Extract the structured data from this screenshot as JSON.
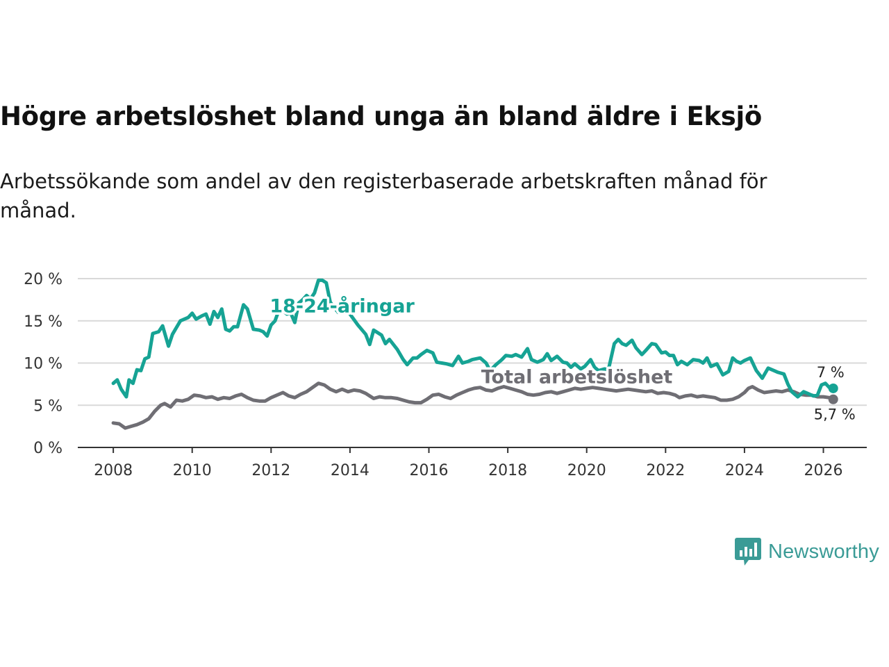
{
  "title": "Högre arbetslöshet bland unga än bland äldre i Eksjö",
  "subtitle": "Arbetssökande som andel av den registerbaserade arbetskraften månad för månad.",
  "brand": {
    "name": "Newsworthy",
    "icon": "newsworthy-logo-icon",
    "color": "#3a9b96"
  },
  "colors": {
    "youth": "#16a394",
    "total": "#6f6e74",
    "grid": "#d9d9d9",
    "axis": "#333333"
  },
  "chart_data": {
    "type": "line",
    "ylim": [
      0,
      20
    ],
    "xlim": [
      2007.1,
      2027.1
    ],
    "y_ticks": [
      {
        "value": 0,
        "label": "0 %"
      },
      {
        "value": 5,
        "label": "5 %"
      },
      {
        "value": 10,
        "label": "10 %"
      },
      {
        "value": 15,
        "label": "15 %"
      },
      {
        "value": 20,
        "label": "20 %"
      }
    ],
    "x_ticks": [
      {
        "value": 2008,
        "label": "2008"
      },
      {
        "value": 2010,
        "label": "2010"
      },
      {
        "value": 2012,
        "label": "2012"
      },
      {
        "value": 2014,
        "label": "2014"
      },
      {
        "value": 2016,
        "label": "2016"
      },
      {
        "value": 2018,
        "label": "2018"
      },
      {
        "value": 2020,
        "label": "2020"
      },
      {
        "value": 2022,
        "label": "2022"
      },
      {
        "value": 2024,
        "label": "2024"
      },
      {
        "value": 2026,
        "label": "2026"
      }
    ],
    "series": [
      {
        "name": "18-24-åringar",
        "color": "#16a394",
        "label_pos": [
          2013.8,
          16.0
        ],
        "end_label": "7 %",
        "points": [
          [
            2008.0,
            7.6
          ],
          [
            2008.1,
            8.0
          ],
          [
            2008.2,
            6.9
          ],
          [
            2008.33,
            6.0
          ],
          [
            2008.4,
            8.0
          ],
          [
            2008.5,
            7.6
          ],
          [
            2008.6,
            9.2
          ],
          [
            2008.7,
            9.1
          ],
          [
            2008.8,
            10.5
          ],
          [
            2008.9,
            10.7
          ],
          [
            2009.0,
            13.5
          ],
          [
            2009.15,
            13.7
          ],
          [
            2009.25,
            14.4
          ],
          [
            2009.4,
            12.0
          ],
          [
            2009.5,
            13.4
          ],
          [
            2009.7,
            15.0
          ],
          [
            2009.9,
            15.4
          ],
          [
            2010.0,
            15.9
          ],
          [
            2010.1,
            15.2
          ],
          [
            2010.25,
            15.6
          ],
          [
            2010.35,
            15.8
          ],
          [
            2010.45,
            14.6
          ],
          [
            2010.55,
            16.1
          ],
          [
            2010.65,
            15.4
          ],
          [
            2010.75,
            16.4
          ],
          [
            2010.85,
            14.0
          ],
          [
            2010.95,
            13.8
          ],
          [
            2011.05,
            14.3
          ],
          [
            2011.15,
            14.3
          ],
          [
            2011.3,
            16.9
          ],
          [
            2011.4,
            16.4
          ],
          [
            2011.55,
            14.0
          ],
          [
            2011.7,
            13.9
          ],
          [
            2011.8,
            13.7
          ],
          [
            2011.9,
            13.2
          ],
          [
            2012.0,
            14.5
          ],
          [
            2012.1,
            15.0
          ],
          [
            2012.2,
            16.3
          ],
          [
            2012.3,
            16.2
          ],
          [
            2012.4,
            15.8
          ],
          [
            2012.5,
            15.9
          ],
          [
            2012.6,
            14.8
          ],
          [
            2012.7,
            17.1
          ],
          [
            2012.8,
            17.5
          ],
          [
            2012.9,
            18.0
          ],
          [
            2013.0,
            17.6
          ],
          [
            2013.1,
            18.3
          ],
          [
            2013.2,
            19.8
          ],
          [
            2013.3,
            19.8
          ],
          [
            2013.4,
            19.5
          ],
          [
            2013.5,
            17.2
          ],
          [
            2013.7,
            16.0
          ],
          [
            2013.9,
            16.2
          ],
          [
            2014.0,
            15.8
          ],
          [
            2014.2,
            14.5
          ],
          [
            2014.4,
            13.4
          ],
          [
            2014.5,
            12.2
          ],
          [
            2014.6,
            13.9
          ],
          [
            2014.8,
            13.3
          ],
          [
            2014.9,
            12.3
          ],
          [
            2015.0,
            12.8
          ],
          [
            2015.2,
            11.6
          ],
          [
            2015.35,
            10.4
          ],
          [
            2015.45,
            9.8
          ],
          [
            2015.6,
            10.6
          ],
          [
            2015.7,
            10.6
          ],
          [
            2015.8,
            11.0
          ],
          [
            2015.95,
            11.5
          ],
          [
            2016.1,
            11.2
          ],
          [
            2016.2,
            10.1
          ],
          [
            2016.45,
            9.9
          ],
          [
            2016.6,
            9.7
          ],
          [
            2016.75,
            10.8
          ],
          [
            2016.85,
            10.0
          ],
          [
            2017.0,
            10.2
          ],
          [
            2017.1,
            10.4
          ],
          [
            2017.3,
            10.6
          ],
          [
            2017.45,
            10.0
          ],
          [
            2017.55,
            9.1
          ],
          [
            2017.7,
            9.8
          ],
          [
            2017.85,
            10.4
          ],
          [
            2017.95,
            10.9
          ],
          [
            2018.1,
            10.8
          ],
          [
            2018.2,
            11.0
          ],
          [
            2018.35,
            10.7
          ],
          [
            2018.5,
            11.7
          ],
          [
            2018.6,
            10.4
          ],
          [
            2018.75,
            10.1
          ],
          [
            2018.9,
            10.4
          ],
          [
            2019.0,
            11.1
          ],
          [
            2019.1,
            10.3
          ],
          [
            2019.25,
            10.8
          ],
          [
            2019.4,
            10.1
          ],
          [
            2019.5,
            10.0
          ],
          [
            2019.6,
            9.5
          ],
          [
            2019.7,
            9.9
          ],
          [
            2019.85,
            9.3
          ],
          [
            2019.95,
            9.6
          ],
          [
            2020.1,
            10.4
          ],
          [
            2020.2,
            9.5
          ],
          [
            2020.3,
            9.1
          ],
          [
            2020.45,
            9.3
          ],
          [
            2020.55,
            9.2
          ],
          [
            2020.7,
            12.3
          ],
          [
            2020.8,
            12.8
          ],
          [
            2020.9,
            12.3
          ],
          [
            2021.0,
            12.1
          ],
          [
            2021.15,
            12.7
          ],
          [
            2021.25,
            11.8
          ],
          [
            2021.4,
            11.0
          ],
          [
            2021.5,
            11.5
          ],
          [
            2021.65,
            12.3
          ],
          [
            2021.75,
            12.2
          ],
          [
            2021.9,
            11.2
          ],
          [
            2022.0,
            11.3
          ],
          [
            2022.1,
            10.9
          ],
          [
            2022.2,
            10.9
          ],
          [
            2022.3,
            9.8
          ],
          [
            2022.4,
            10.2
          ],
          [
            2022.55,
            9.8
          ],
          [
            2022.7,
            10.4
          ],
          [
            2022.85,
            10.3
          ],
          [
            2022.95,
            10.0
          ],
          [
            2023.05,
            10.6
          ],
          [
            2023.15,
            9.6
          ],
          [
            2023.3,
            9.9
          ],
          [
            2023.45,
            8.6
          ],
          [
            2023.6,
            9.0
          ],
          [
            2023.7,
            10.6
          ],
          [
            2023.8,
            10.2
          ],
          [
            2023.9,
            10.0
          ],
          [
            2024.0,
            10.3
          ],
          [
            2024.15,
            10.6
          ],
          [
            2024.3,
            9.1
          ],
          [
            2024.45,
            8.2
          ],
          [
            2024.6,
            9.4
          ],
          [
            2024.75,
            9.1
          ],
          [
            2024.85,
            8.9
          ],
          [
            2025.0,
            8.7
          ],
          [
            2025.1,
            7.5
          ],
          [
            2025.2,
            6.6
          ],
          [
            2025.35,
            6.0
          ],
          [
            2025.5,
            6.6
          ],
          [
            2025.6,
            6.4
          ],
          [
            2025.75,
            6.1
          ],
          [
            2025.85,
            6.2
          ],
          [
            2025.95,
            7.4
          ],
          [
            2026.05,
            7.6
          ],
          [
            2026.15,
            7.1
          ],
          [
            2026.25,
            7.0
          ]
        ]
      },
      {
        "name": "Total arbetslöshet",
        "color": "#6f6e74",
        "label_pos": [
          2019.75,
          7.6
        ],
        "end_label": "5,7 %",
        "points": [
          [
            2008.0,
            2.9
          ],
          [
            2008.15,
            2.8
          ],
          [
            2008.3,
            2.3
          ],
          [
            2008.45,
            2.5
          ],
          [
            2008.6,
            2.7
          ],
          [
            2008.75,
            3.0
          ],
          [
            2008.9,
            3.4
          ],
          [
            2009.05,
            4.3
          ],
          [
            2009.2,
            5.0
          ],
          [
            2009.3,
            5.2
          ],
          [
            2009.45,
            4.8
          ],
          [
            2009.6,
            5.6
          ],
          [
            2009.75,
            5.5
          ],
          [
            2009.9,
            5.7
          ],
          [
            2010.05,
            6.2
          ],
          [
            2010.2,
            6.1
          ],
          [
            2010.35,
            5.9
          ],
          [
            2010.5,
            6.0
          ],
          [
            2010.65,
            5.7
          ],
          [
            2010.8,
            5.9
          ],
          [
            2010.95,
            5.8
          ],
          [
            2011.1,
            6.1
          ],
          [
            2011.25,
            6.3
          ],
          [
            2011.4,
            5.9
          ],
          [
            2011.55,
            5.6
          ],
          [
            2011.7,
            5.5
          ],
          [
            2011.85,
            5.5
          ],
          [
            2012.0,
            5.9
          ],
          [
            2012.15,
            6.2
          ],
          [
            2012.3,
            6.5
          ],
          [
            2012.45,
            6.1
          ],
          [
            2012.6,
            5.9
          ],
          [
            2012.75,
            6.3
          ],
          [
            2012.9,
            6.6
          ],
          [
            2013.05,
            7.1
          ],
          [
            2013.2,
            7.6
          ],
          [
            2013.35,
            7.4
          ],
          [
            2013.5,
            6.9
          ],
          [
            2013.65,
            6.6
          ],
          [
            2013.8,
            6.9
          ],
          [
            2013.95,
            6.6
          ],
          [
            2014.1,
            6.8
          ],
          [
            2014.25,
            6.7
          ],
          [
            2014.4,
            6.4
          ],
          [
            2014.5,
            6.1
          ],
          [
            2014.6,
            5.8
          ],
          [
            2014.75,
            6.0
          ],
          [
            2014.9,
            5.9
          ],
          [
            2015.05,
            5.9
          ],
          [
            2015.2,
            5.8
          ],
          [
            2015.35,
            5.6
          ],
          [
            2015.5,
            5.4
          ],
          [
            2015.65,
            5.3
          ],
          [
            2015.8,
            5.3
          ],
          [
            2015.95,
            5.7
          ],
          [
            2016.1,
            6.2
          ],
          [
            2016.25,
            6.3
          ],
          [
            2016.4,
            6.0
          ],
          [
            2016.55,
            5.8
          ],
          [
            2016.7,
            6.2
          ],
          [
            2016.85,
            6.5
          ],
          [
            2017.0,
            6.8
          ],
          [
            2017.15,
            7.0
          ],
          [
            2017.3,
            7.1
          ],
          [
            2017.45,
            6.8
          ],
          [
            2017.6,
            6.7
          ],
          [
            2017.75,
            7.0
          ],
          [
            2017.9,
            7.2
          ],
          [
            2018.05,
            7.0
          ],
          [
            2018.2,
            6.8
          ],
          [
            2018.35,
            6.6
          ],
          [
            2018.5,
            6.3
          ],
          [
            2018.65,
            6.2
          ],
          [
            2018.8,
            6.3
          ],
          [
            2018.95,
            6.5
          ],
          [
            2019.1,
            6.6
          ],
          [
            2019.25,
            6.4
          ],
          [
            2019.4,
            6.6
          ],
          [
            2019.55,
            6.8
          ],
          [
            2019.7,
            7.0
          ],
          [
            2019.85,
            6.9
          ],
          [
            2020.0,
            7.0
          ],
          [
            2020.15,
            7.1
          ],
          [
            2020.3,
            7.0
          ],
          [
            2020.45,
            6.9
          ],
          [
            2020.6,
            6.8
          ],
          [
            2020.75,
            6.7
          ],
          [
            2020.9,
            6.8
          ],
          [
            2021.05,
            6.9
          ],
          [
            2021.2,
            6.8
          ],
          [
            2021.35,
            6.7
          ],
          [
            2021.5,
            6.6
          ],
          [
            2021.65,
            6.7
          ],
          [
            2021.8,
            6.4
          ],
          [
            2021.95,
            6.5
          ],
          [
            2022.1,
            6.4
          ],
          [
            2022.25,
            6.2
          ],
          [
            2022.35,
            5.9
          ],
          [
            2022.5,
            6.1
          ],
          [
            2022.65,
            6.2
          ],
          [
            2022.8,
            6.0
          ],
          [
            2022.95,
            6.1
          ],
          [
            2023.1,
            6.0
          ],
          [
            2023.25,
            5.9
          ],
          [
            2023.4,
            5.6
          ],
          [
            2023.55,
            5.6
          ],
          [
            2023.7,
            5.7
          ],
          [
            2023.85,
            6.0
          ],
          [
            2024.0,
            6.5
          ],
          [
            2024.1,
            7.0
          ],
          [
            2024.2,
            7.2
          ],
          [
            2024.35,
            6.8
          ],
          [
            2024.5,
            6.5
          ],
          [
            2024.65,
            6.6
          ],
          [
            2024.8,
            6.7
          ],
          [
            2024.95,
            6.6
          ],
          [
            2025.1,
            6.8
          ],
          [
            2025.25,
            6.6
          ],
          [
            2025.4,
            6.3
          ],
          [
            2025.55,
            6.2
          ],
          [
            2025.7,
            6.2
          ],
          [
            2025.85,
            6.0
          ],
          [
            2026.0,
            6.0
          ],
          [
            2026.15,
            5.9
          ],
          [
            2026.25,
            5.7
          ]
        ]
      }
    ]
  }
}
